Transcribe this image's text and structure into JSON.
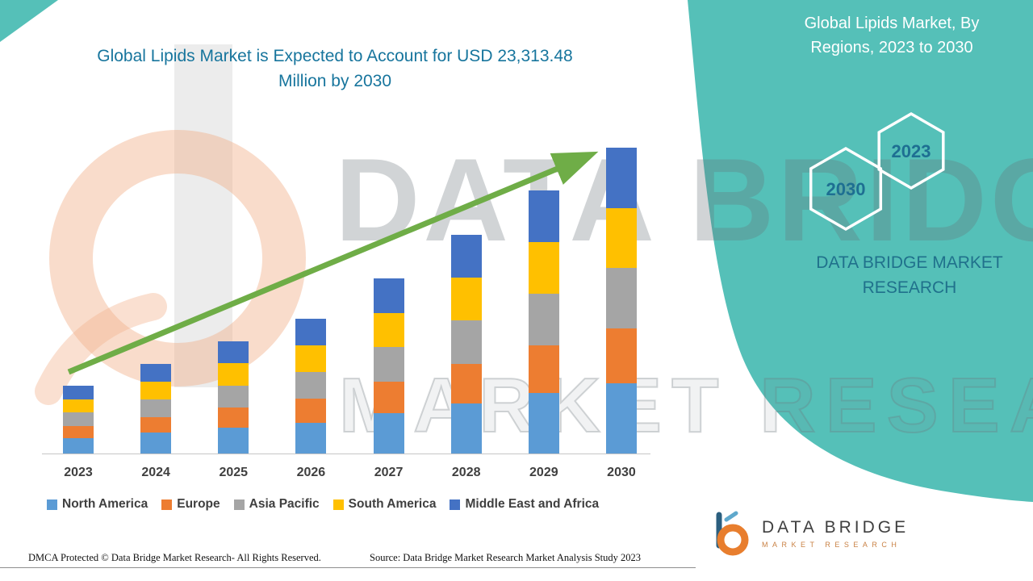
{
  "header": {
    "left_title_lines": [
      "Global Lipids Market is Expected to Account for USD 23,313.48",
      "Million by 2030"
    ],
    "right_title_lines": [
      "Global Lipids Market, By",
      "Regions, 2023 to 2030"
    ]
  },
  "badges": {
    "left_hexagon": "2030",
    "right_hexagon": "2023"
  },
  "brand": {
    "panel_line1": "DATA BRIDGE MARKET",
    "panel_line2": "RESEARCH",
    "logo_title": "DATA BRIDGE",
    "logo_subtitle": "MARKET RESEARCH"
  },
  "watermark": {
    "line1": "DATA BRIDGE",
    "line2": "MARKET RESEARCH"
  },
  "footer": {
    "dmca": "DMCA Protected © Data Bridge Market Research- All Rights Reserved.",
    "source": "Source: Data Bridge Market Research Market Analysis Study 2023"
  },
  "colors": {
    "teal": "#55C0B8",
    "title_blue": "#17759D",
    "badge_text": "#1E6F92",
    "panel_brand_text": "#20718C",
    "arrow_green": "#6FAD47",
    "axis_text": "#3F3F3F"
  },
  "chart_data": {
    "type": "bar",
    "stacked": true,
    "title": "Global Lipids Market is Expected to Account for USD 23,313.48 Million by 2030",
    "unit": "USD Million",
    "categories": [
      "2023",
      "2024",
      "2025",
      "2026",
      "2027",
      "2028",
      "2029",
      "2030"
    ],
    "series": [
      {
        "name": "North America",
        "color": "#5B9BD5",
        "values": [
          1227,
          1656,
          2025,
          2393,
          3129,
          3865,
          4663,
          5400
        ]
      },
      {
        "name": "Europe",
        "color": "#ED7D31",
        "values": [
          920,
          1166,
          1534,
          1841,
          2393,
          3006,
          3620,
          4172
        ]
      },
      {
        "name": "Asia Pacific",
        "color": "#A5A5A5",
        "values": [
          1043,
          1350,
          1656,
          2025,
          2638,
          3313,
          3926,
          4601
        ]
      },
      {
        "name": "South America",
        "color": "#FFC000",
        "values": [
          982,
          1350,
          1718,
          2025,
          2577,
          3252,
          3926,
          4540
        ]
      },
      {
        "name": "Middle East and Africa",
        "color": "#4472C4",
        "values": [
          1043,
          1350,
          1656,
          2025,
          2638,
          3252,
          3926,
          4600.48
        ]
      }
    ],
    "totals_estimated": [
      5215,
      6872,
      8589,
      10309,
      13375,
      16688,
      20061,
      23313.48
    ],
    "value_axis_labels_visible": false,
    "grid": false,
    "legend_position": "bottom",
    "trend_arrow": true,
    "note": "Segment values estimated from bar heights; 2030 total anchored to USD 23,313.48 Million stated in title."
  }
}
